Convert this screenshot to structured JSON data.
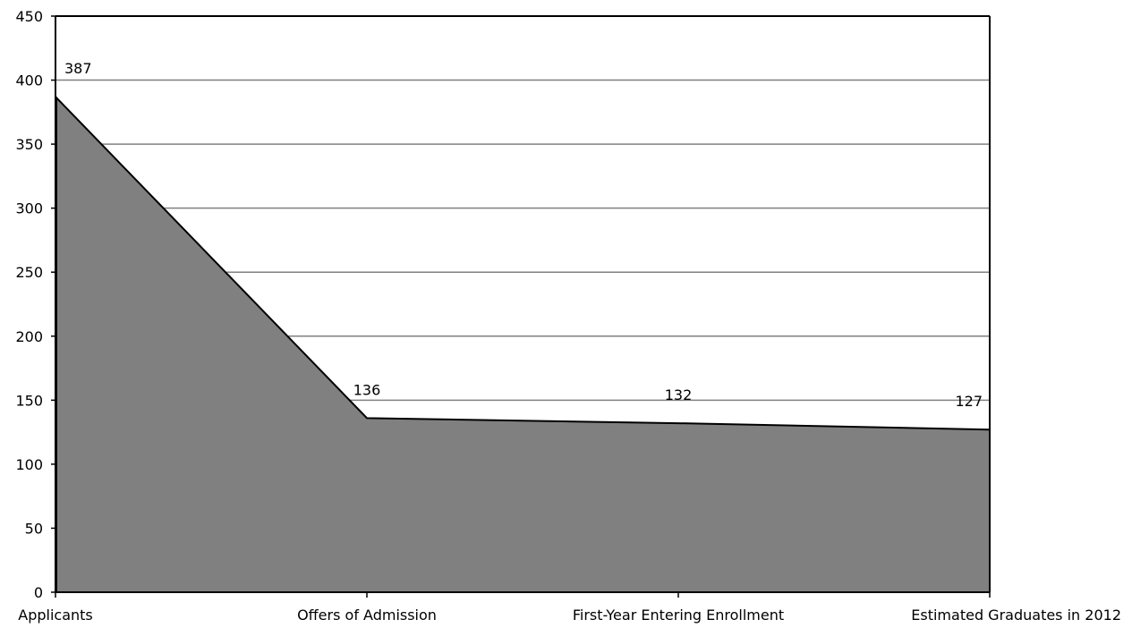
{
  "chart_data": {
    "type": "area",
    "categories": [
      "Applicants",
      "Offers of Admission",
      "First-Year Entering Enrollment",
      "Estimated Graduates in 2012"
    ],
    "values": [
      387,
      136,
      132,
      127
    ],
    "data_labels": [
      "387",
      "136",
      "132",
      "127"
    ],
    "ylim": [
      0,
      450
    ],
    "yticks": [
      0,
      50,
      100,
      150,
      200,
      250,
      300,
      350,
      400,
      450
    ],
    "ytick_labels": [
      "0",
      "50",
      "100",
      "150",
      "200",
      "250",
      "300",
      "350",
      "400",
      "450"
    ],
    "grid": true,
    "legend": "none",
    "colors": {
      "area_fill": "#808080",
      "area_stroke": "#000000",
      "gridline": "#808080",
      "axis": "#000000"
    }
  }
}
